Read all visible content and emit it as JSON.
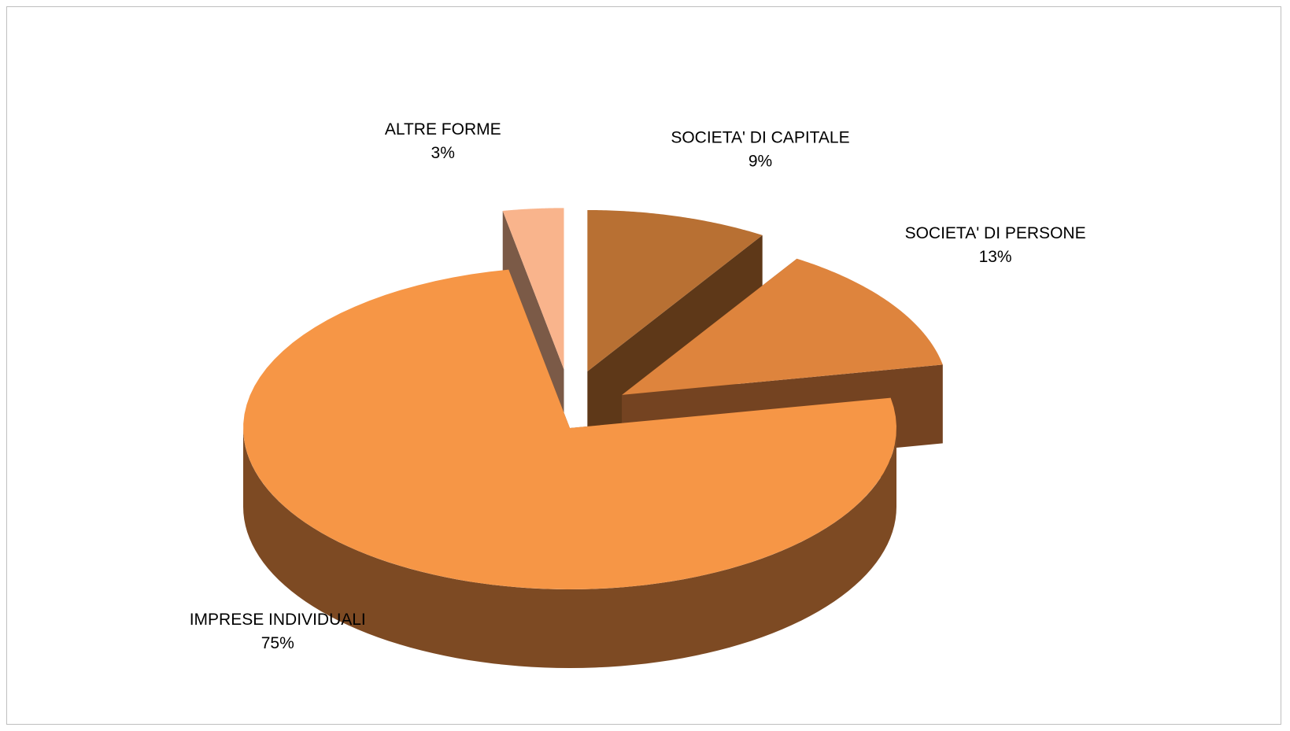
{
  "chart_data": {
    "type": "pie",
    "style": "3d-exploded",
    "title": "",
    "legend": "none",
    "data_labels": "category-and-percent",
    "slices": [
      {
        "name": "SOCIETA' DI CAPITALE",
        "value": 9,
        "label": "9%",
        "color": "#B87033",
        "side_color": "#5E3818"
      },
      {
        "name": "SOCIETA' DI PERSONE",
        "value": 13,
        "label": "13%",
        "color": "#DE843D",
        "side_color": "#744321"
      },
      {
        "name": "IMPRESE INDIVIDUALI",
        "value": 75,
        "label": "75%",
        "color": "#F69646",
        "side_color": "#7D4A23"
      },
      {
        "name": "ALTRE FORME",
        "value": 3,
        "label": "3%",
        "color": "#F9B48C",
        "side_color": "#7B5A47"
      }
    ]
  }
}
